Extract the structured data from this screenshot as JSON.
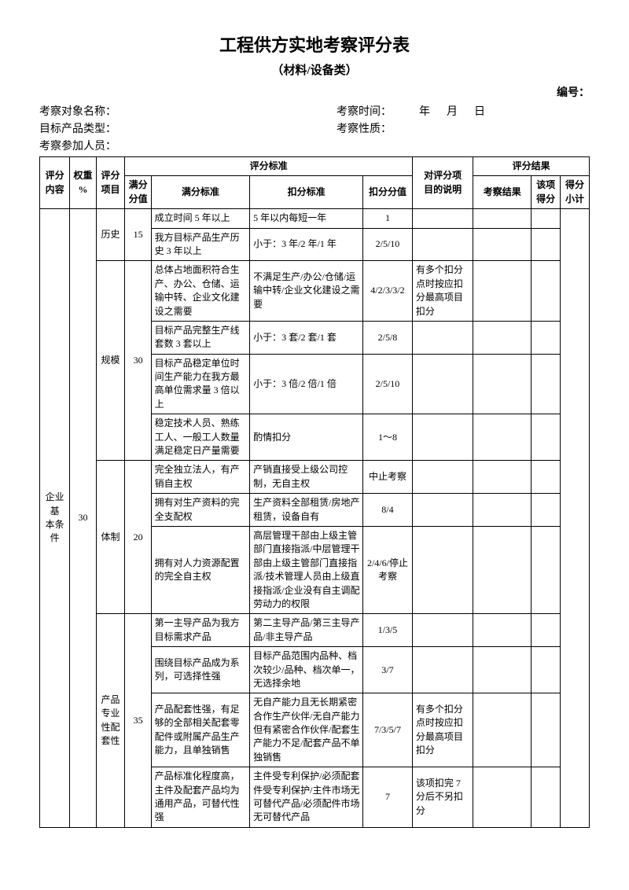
{
  "title": "工程供方实地考察评分表",
  "subtitle": "（材料/设备类）",
  "serial_label": "编号：",
  "info": {
    "obj_label": "考察对象名称：",
    "time_label": "考察时间：",
    "time_year": "年",
    "time_month": "月",
    "time_day": "日",
    "prod_label": "目标产品类型：",
    "nature_label": "考察性质：",
    "people_label": "考察参加人员："
  },
  "headers": {
    "content": "评分\n内容",
    "weight": "权重\n%",
    "item": "评分\n项目",
    "std_group": "评分标准",
    "full_val": "满分\n分值",
    "full_std": "满分标准",
    "deduct_std": "扣分标准",
    "deduct_val": "扣分分值",
    "explain": "对评分项\n目的说明",
    "result_group": "评分结果",
    "inspect": "考察结果",
    "this_score": "该项\n得分",
    "subtotal": "得分\n小计"
  },
  "cat": {
    "name": "企业基\n本条件",
    "weight": "30"
  },
  "g1": {
    "name": "历史",
    "full": "15",
    "r1": {
      "fs": "成立时间 5 年以上",
      "ds": "5 年以内每短一年",
      "dv": "1"
    },
    "r2": {
      "fs": "我方目标产品生产历史 3 年以上",
      "ds": "小于：3 年/2 年/1 年",
      "dv": "2/5/10"
    }
  },
  "g2": {
    "name": "规模",
    "full": "30",
    "r1": {
      "fs": "总体占地面积符合生产、办公、仓储、运输中转、企业文化建设之需要",
      "ds": "不满足生产/办公/仓储/运输中转/企业文化建设之需要",
      "dv": "4/2/3/3/2",
      "note": "有多个扣分点时按应扣分最高项目扣分"
    },
    "r2": {
      "fs": "目标产品完整生产线套数 3 套以上",
      "ds": "小于：3 套/2 套/1 套",
      "dv": "2/5/8"
    },
    "r3": {
      "fs": "目标产品稳定单位时间生产能力在我方最高单位需求量 3 倍以上",
      "ds": "小于：3 倍/2 倍/1 倍",
      "dv": "2/5/10"
    },
    "r4": {
      "fs": "稳定技术人员、熟练工人、一般工人数量满足稳定日产量需要",
      "ds": "酌情扣分",
      "dv": "1～8"
    }
  },
  "g3": {
    "name": "体制",
    "full": "20",
    "r1": {
      "fs": "完全独立法人，有产销自主权",
      "ds": "产销直接受上级公司控制，无自主权",
      "dv": "中止考察"
    },
    "r2": {
      "fs": "拥有对生产资料的完全支配权",
      "ds": "生产资料全部租赁/房地产租赁，设备自有",
      "dv": "8/4"
    },
    "r3": {
      "fs": "拥有对人力资源配置的完全自主权",
      "ds": "高层管理干部由上级主管部门直接指派/中层管理干部由上级主管部门直接指派/技术管理人员由上级直接指派/企业没有自主调配劳动力的权限",
      "dv": "2/4/6/停止考察"
    }
  },
  "g4": {
    "name": "产品\n专业\n性配\n套性",
    "full": "35",
    "r1": {
      "fs": "第一主导产品为我方目标需求产品",
      "ds": "第二主导产品/第三主导产品/非主导产品",
      "dv": "1/3/5"
    },
    "r2": {
      "fs": "围绕目标产品成为系列，可选择性强",
      "ds": "目标产品范围内品种、档次较少/品种、档次单一，无选择余地",
      "dv": "3/7"
    },
    "r3": {
      "fs": "产品配套性强，有足够的全部相关配套零配件或附属产品生产能力，且单独销售",
      "ds": "无自产能力且无长期紧密合作生产伙伴/无自产能力但有紧密合作伙伴/配套生产能力不足/配套产品不单独销售",
      "dv": "7/3/5/7",
      "note": "有多个扣分点时按应扣分最高项目扣分"
    },
    "r4": {
      "fs": "产品标准化程度高，主件及配套产品均为通用产品，可替代性强",
      "ds": "主件受专利保护/必须配套件受专利保护/主件市场无可替代产品/必须配件市场无可替代产品",
      "dv": "7",
      "note": "该项扣完 7 分后不另扣分"
    }
  }
}
